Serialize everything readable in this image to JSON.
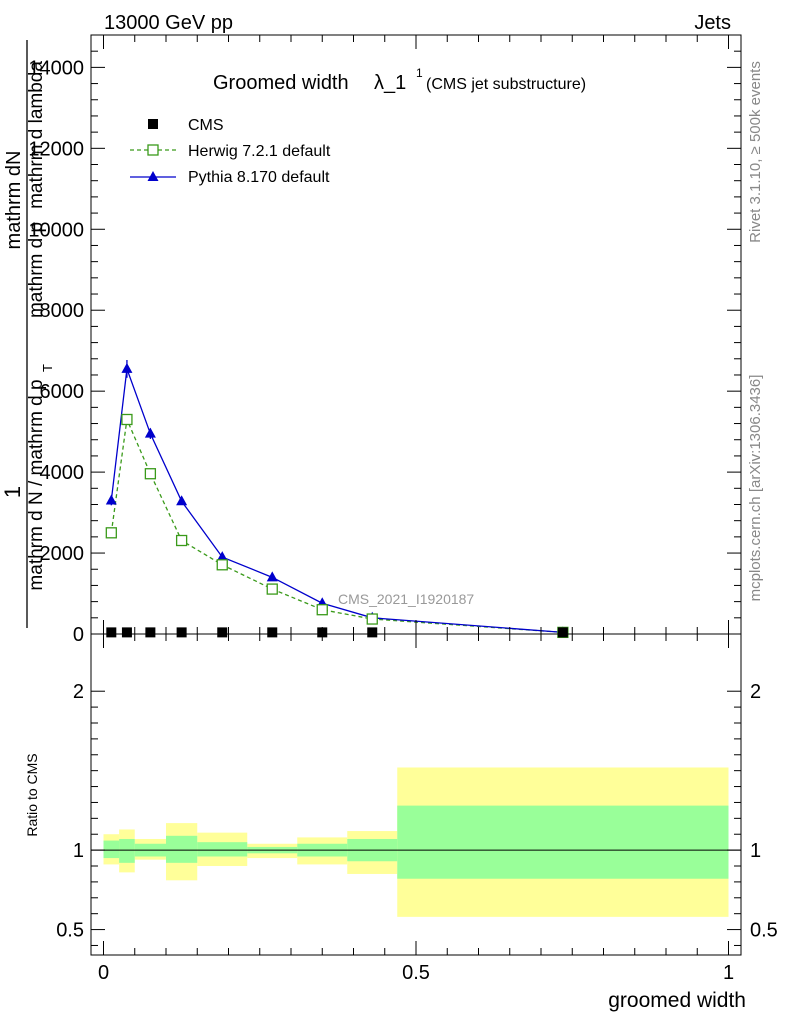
{
  "header": {
    "left": "13000 GeV pp",
    "right": "Jets"
  },
  "side_labels": {
    "rivet": "Rivet 3.1.10, ≥ 500k events",
    "mcplots": "mcplots.cern.ch [arXiv:1306.3436]"
  },
  "chart_data": {
    "type": "line",
    "title_main": "Groomed width",
    "title_lambda": "λ_1",
    "title_sup": "1",
    "title_sub": "(CMS jet substructure)",
    "watermark": "CMS_2021_I1920187",
    "ylabel_top": "1",
    "ylabel_num": "mathrm dN",
    "ylabel_den_outer": "mathrm d N / mathrm d p",
    "ylabel_den_t": "T",
    "ylabel_den_mid": "mathrm d p",
    "ylabel_den_tail": "mathrm d lambda",
    "xlabel": "groomed width",
    "ylim": [
      0,
      14800
    ],
    "xlim": [
      -0.02,
      1.02
    ],
    "y_ticks": [
      {
        "value": 0,
        "label": "0"
      },
      {
        "value": 2000,
        "label": "2000"
      },
      {
        "value": 4000,
        "label": "4000"
      },
      {
        "value": 6000,
        "label": "6000"
      },
      {
        "value": 8000,
        "label": "8000"
      },
      {
        "value": 10000,
        "label": "10000"
      },
      {
        "value": 12000,
        "label": "12000"
      },
      {
        "value": 14000,
        "label": "14000"
      }
    ],
    "x_ticks": [
      {
        "value": 0,
        "label": "0"
      },
      {
        "value": 0.5,
        "label": "0.5"
      },
      {
        "value": 1,
        "label": "1"
      }
    ],
    "legend": [
      {
        "name": "CMS",
        "color": "#000000",
        "marker": "square-filled"
      },
      {
        "name": "Herwig 7.2.1 default",
        "color": "#3a9a1a",
        "marker": "square-open"
      },
      {
        "name": "Pythia 8.170 default",
        "color": "#0000cc",
        "marker": "triangle"
      }
    ],
    "bins": [
      [
        0.0,
        0.025
      ],
      [
        0.025,
        0.05
      ],
      [
        0.05,
        0.1
      ],
      [
        0.1,
        0.15
      ],
      [
        0.15,
        0.23
      ],
      [
        0.23,
        0.31
      ],
      [
        0.31,
        0.39
      ],
      [
        0.39,
        0.47
      ],
      [
        0.47,
        1.0
      ]
    ],
    "series": [
      {
        "name": "CMS",
        "x": [
          0.0125,
          0.0375,
          0.075,
          0.125,
          0.19,
          0.27,
          0.35,
          0.43,
          0.735
        ],
        "values": [
          40,
          40,
          40,
          40,
          40,
          40,
          40,
          40,
          40
        ]
      },
      {
        "name": "Herwig 7.2.1 default",
        "x": [
          0.0125,
          0.0375,
          0.075,
          0.125,
          0.19,
          0.27,
          0.35,
          0.43,
          0.735
        ],
        "values": [
          2500,
          5300,
          3960,
          2310,
          1710,
          1110,
          600,
          370,
          40
        ]
      },
      {
        "name": "Pythia 8.170 default",
        "x": [
          0.0125,
          0.0375,
          0.075,
          0.125,
          0.19,
          0.27,
          0.35,
          0.43,
          0.735
        ],
        "values": [
          3300,
          6550,
          4950,
          3280,
          1900,
          1400,
          760,
          400,
          40
        ],
        "errors": [
          120,
          220,
          130,
          80,
          50,
          40,
          30,
          20,
          10
        ]
      }
    ],
    "ratio": {
      "ylabel": "Ratio to CMS",
      "ylim": [
        0.34,
        2.36
      ],
      "reference": 1,
      "y_ticks": [
        {
          "value": 0.5,
          "label": "0.5"
        },
        {
          "value": 1,
          "label": "1"
        },
        {
          "value": 2,
          "label": "2"
        }
      ],
      "band_inner": [
        [
          0.95,
          1.06
        ],
        [
          0.92,
          1.07
        ],
        [
          0.96,
          1.04
        ],
        [
          0.92,
          1.09
        ],
        [
          0.96,
          1.05
        ],
        [
          0.98,
          1.02
        ],
        [
          0.96,
          1.04
        ],
        [
          0.93,
          1.07
        ],
        [
          0.82,
          1.28
        ]
      ],
      "band_outer": [
        [
          0.91,
          1.1
        ],
        [
          0.86,
          1.13
        ],
        [
          0.94,
          1.07
        ],
        [
          0.81,
          1.17
        ],
        [
          0.9,
          1.11
        ],
        [
          0.95,
          1.04
        ],
        [
          0.91,
          1.08
        ],
        [
          0.85,
          1.12
        ],
        [
          0.58,
          1.52
        ]
      ]
    }
  }
}
